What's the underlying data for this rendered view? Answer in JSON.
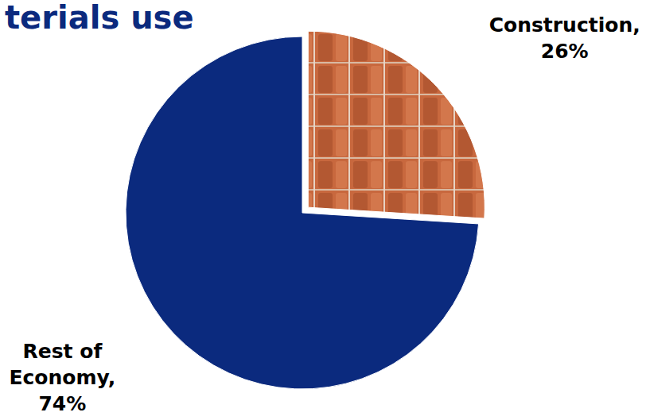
{
  "chart_data": {
    "type": "pie",
    "title": "terials use",
    "categories": [
      "Construction,",
      "Rest of Economy,"
    ],
    "values": [
      26,
      74
    ],
    "value_labels": [
      "26%",
      "74%"
    ],
    "colors": [
      "#c8683e",
      "#0b2a7e"
    ],
    "data_labels": true
  }
}
